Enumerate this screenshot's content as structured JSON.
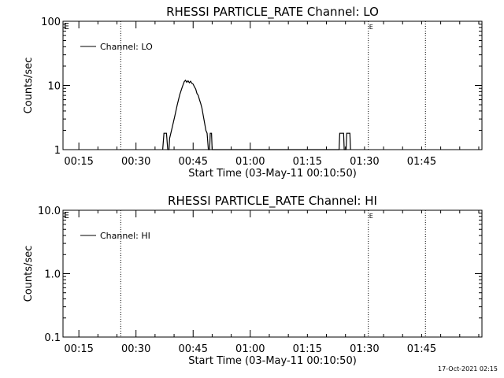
{
  "footer_timestamp": "17-Oct-2021 02:15",
  "chart_data": [
    {
      "type": "line",
      "title": "RHESSI PARTICLE_RATE Channel: LO",
      "xlabel": "Start Time (03-May-11 00:10:50)",
      "ylabel": "Counts/sec",
      "yscale": "log",
      "ylim": [
        1,
        100
      ],
      "y_ticks": [
        "1",
        "10",
        "100"
      ],
      "xlim_minutes": [
        0.0,
        110.0
      ],
      "x_ticks": [
        "00:15",
        "00:30",
        "00:45",
        "01:00",
        "01:15",
        "01:30",
        "01:45"
      ],
      "legend": {
        "position": "top-left",
        "entries": [
          "Channel: LO"
        ]
      },
      "markers": [
        {
          "label": "",
          "time": "00:26"
        },
        {
          "label": "E",
          "time": "01:31"
        },
        {
          "label": "",
          "time": "01:46"
        }
      ],
      "left_marker_label": "E",
      "series": [
        {
          "name": "Channel: LO",
          "points": [
            [
              "00:37:00",
              1
            ],
            [
              "00:37:20",
              1.8
            ],
            [
              "00:38:00",
              1.8
            ],
            [
              "00:38:20",
              1
            ],
            [
              "00:38:40",
              1
            ],
            [
              "00:38:50",
              1.5
            ],
            [
              "00:39:30",
              2.2
            ],
            [
              "00:40:10",
              3.3
            ],
            [
              "00:40:50",
              5.0
            ],
            [
              "00:41:30",
              7.2
            ],
            [
              "00:42:10",
              9.5
            ],
            [
              "00:42:40",
              11.5
            ],
            [
              "00:43:00",
              12.0
            ],
            [
              "00:43:20",
              11.2
            ],
            [
              "00:43:40",
              11.8
            ],
            [
              "00:44:00",
              11.0
            ],
            [
              "00:44:20",
              11.6
            ],
            [
              "00:44:40",
              10.8
            ],
            [
              "00:45:00",
              10.5
            ],
            [
              "00:45:20",
              9.5
            ],
            [
              "00:45:40",
              8.8
            ],
            [
              "00:46:00",
              7.5
            ],
            [
              "00:46:20",
              7.0
            ],
            [
              "00:46:40",
              6.0
            ],
            [
              "00:47:00",
              5.2
            ],
            [
              "00:47:20",
              4.4
            ],
            [
              "00:47:40",
              3.4
            ],
            [
              "00:48:00",
              2.6
            ],
            [
              "00:48:20",
              2.0
            ],
            [
              "00:48:40",
              1.8
            ],
            [
              "00:49:00",
              1.0
            ],
            [
              "00:49:20",
              1.0
            ],
            [
              "00:49:30",
              1.8
            ],
            [
              "00:49:50",
              1.8
            ],
            [
              "00:50:00",
              1.0
            ],
            [
              "01:23:20",
              1.0
            ],
            [
              "01:23:30",
              1.8
            ],
            [
              "01:24:30",
              1.8
            ],
            [
              "01:24:40",
              1.0
            ],
            [
              "01:25:10",
              1.0
            ],
            [
              "01:25:20",
              1.8
            ],
            [
              "01:26:10",
              1.8
            ],
            [
              "01:26:20",
              1.0
            ]
          ]
        }
      ]
    },
    {
      "type": "line",
      "title": "RHESSI PARTICLE_RATE Channel: HI",
      "xlabel": "Start Time (03-May-11 00:10:50)",
      "ylabel": "Counts/sec",
      "yscale": "log",
      "ylim": [
        0.1,
        10.0
      ],
      "y_ticks": [
        "0.1",
        "1.0",
        "10.0"
      ],
      "xlim_minutes": [
        0.0,
        110.0
      ],
      "x_ticks": [
        "00:15",
        "00:30",
        "00:45",
        "01:00",
        "01:15",
        "01:30",
        "01:45"
      ],
      "legend": {
        "position": "top-left",
        "entries": [
          "Channel: HI"
        ]
      },
      "markers": [
        {
          "label": "",
          "time": "00:26"
        },
        {
          "label": "E",
          "time": "01:31"
        },
        {
          "label": "",
          "time": "01:46"
        }
      ],
      "left_marker_label": "E",
      "series": [
        {
          "name": "Channel: HI",
          "points": []
        }
      ]
    }
  ]
}
